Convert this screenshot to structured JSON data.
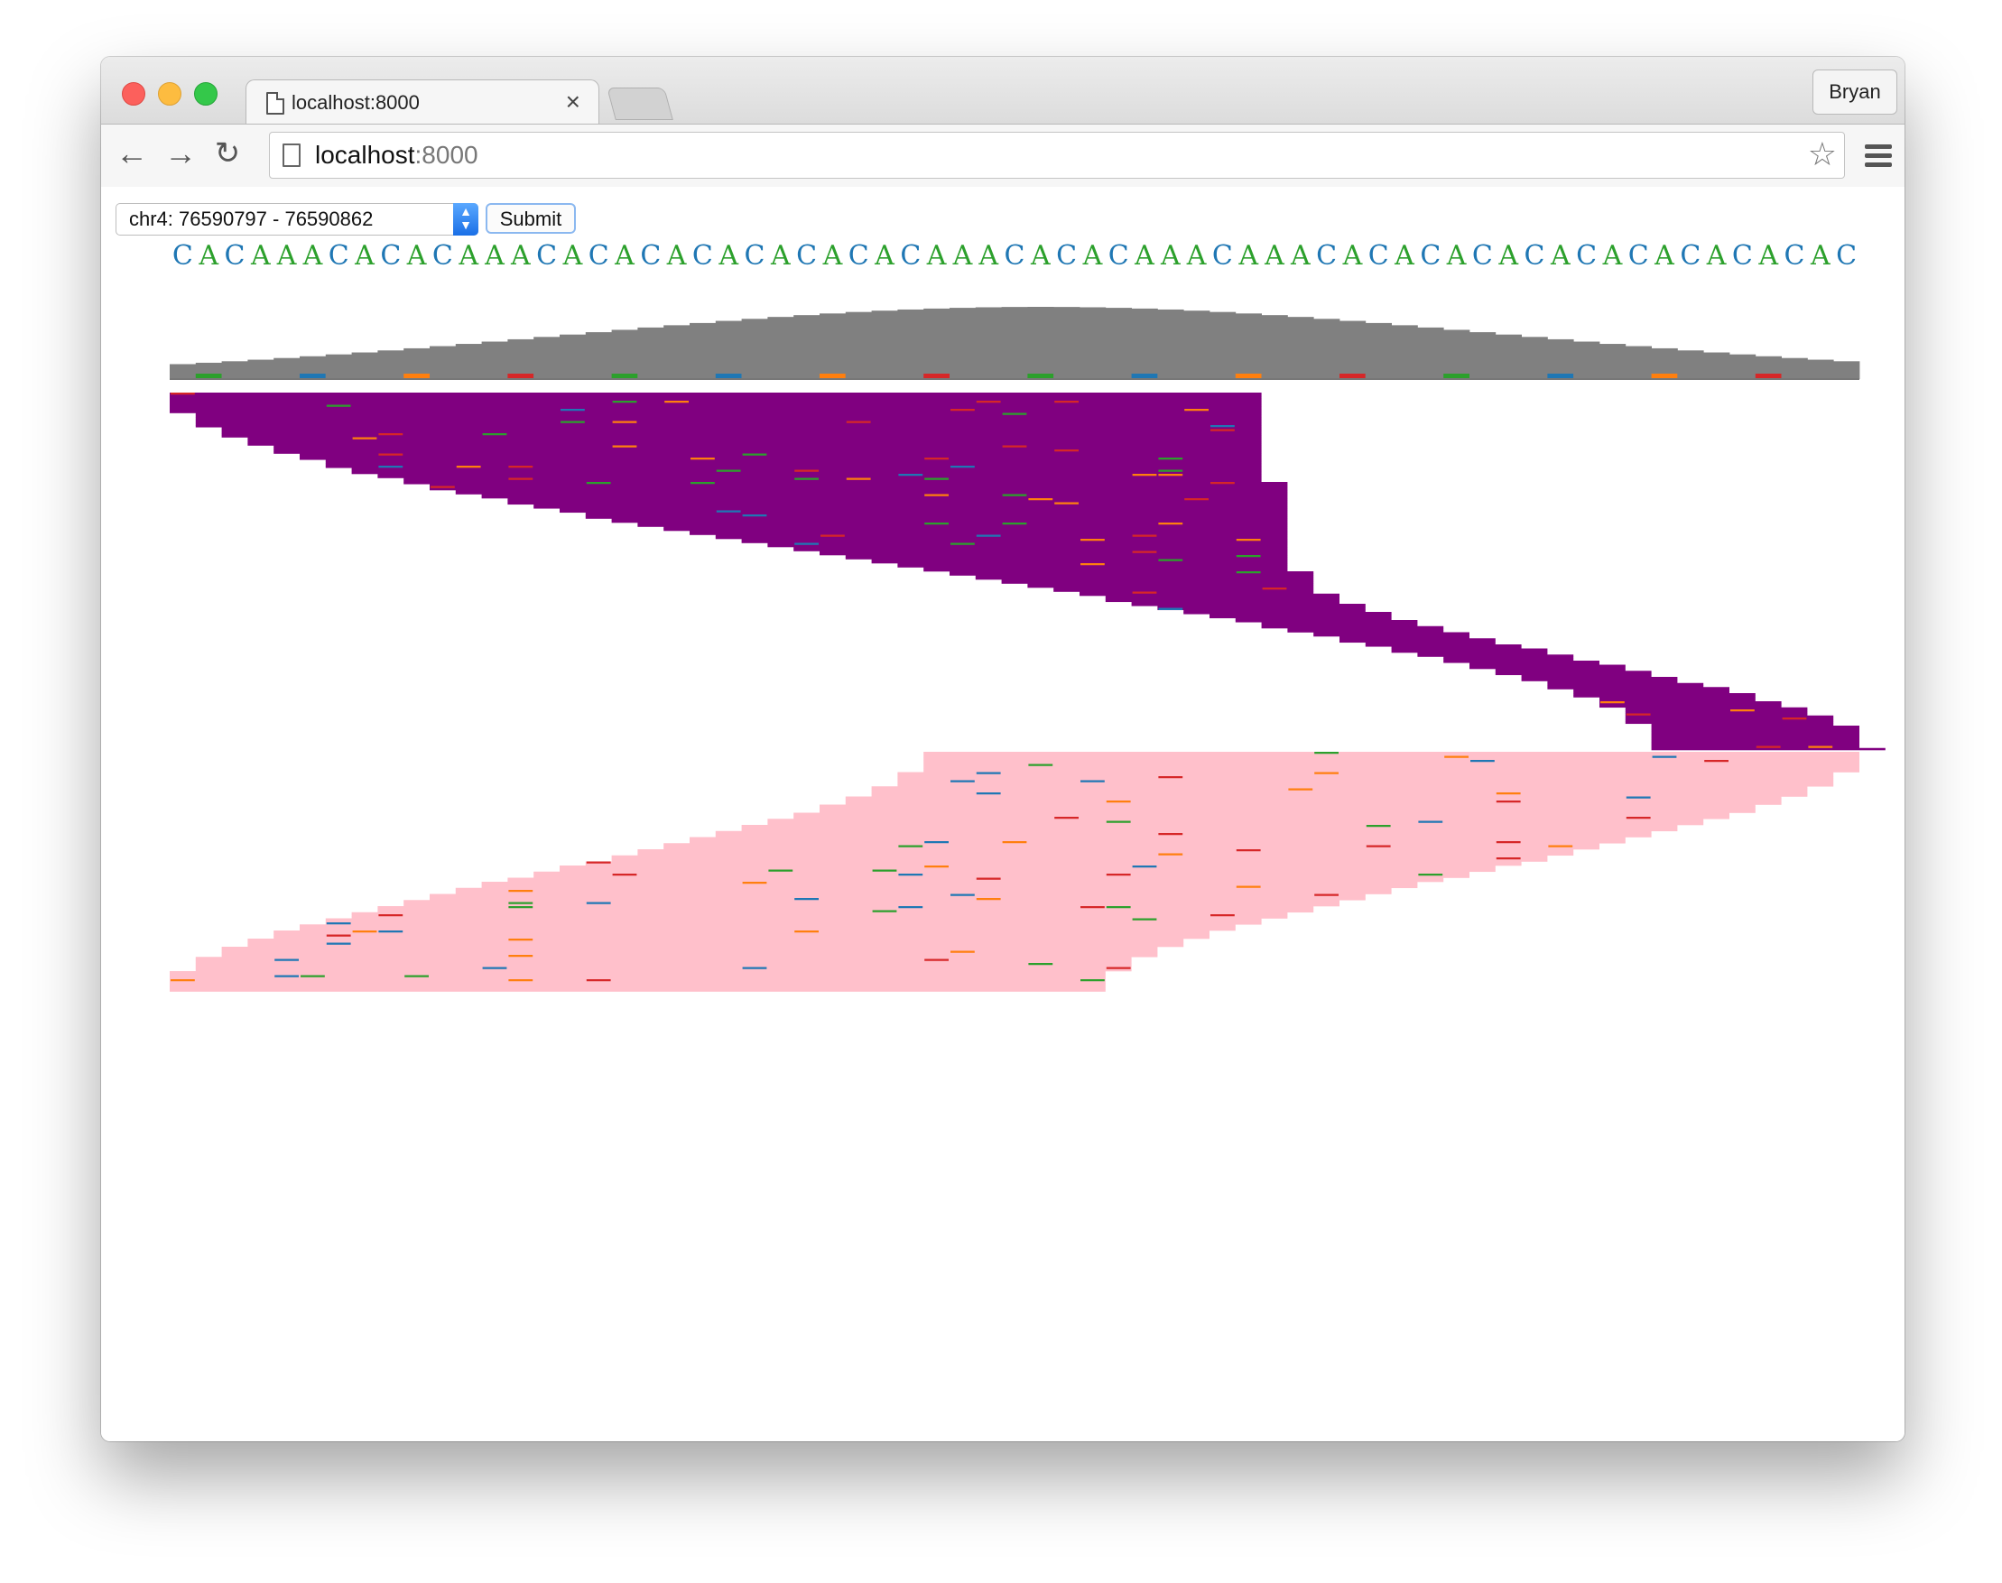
{
  "browser": {
    "tab_title": "localhost:8000",
    "tab_close": "×",
    "profile_name": "Bryan",
    "url_host": "localhost",
    "url_port": ":8000"
  },
  "controls": {
    "region_value": "chr4: 76590797 - 76590862",
    "submit_label": "Submit"
  },
  "viewer": {
    "reference_sequence": "CACAAACACACAAACACACACACACACACAAACACACAAACAAACACACACACACACACACACAC",
    "colors": {
      "C": "#1f77b4",
      "A": "#2ca02c",
      "G": "#ff7f0e",
      "T": "#d62728",
      "coverage": "#808080",
      "forward_reads": "#800080",
      "reverse_reads": "#ffc0cb"
    }
  }
}
